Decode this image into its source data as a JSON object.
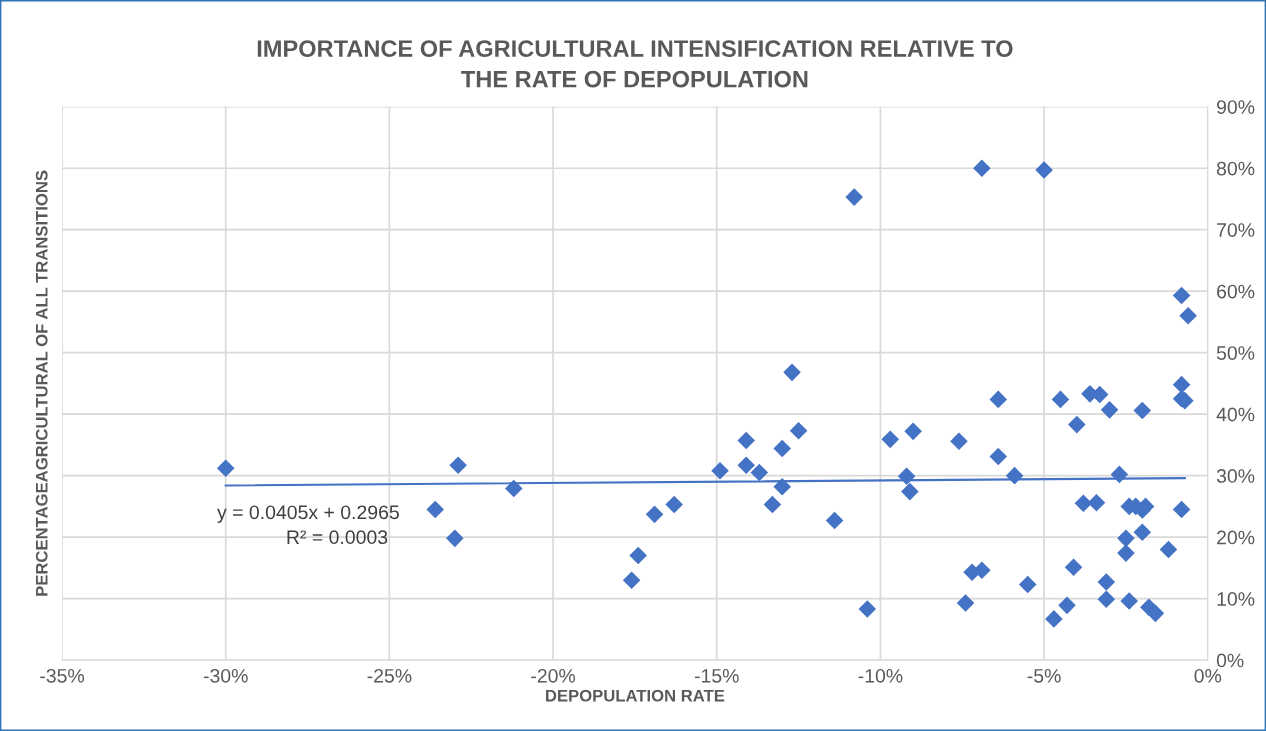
{
  "chart_data": {
    "type": "scatter",
    "title": "IMPORTANCE OF AGRICULTURAL INTENSIFICATION RELATIVE TO\nTHE RATE OF DEPOPULATION",
    "xlabel": "DEPOPULATION RATE",
    "ylabel": "PERCENTAGEAGRICULTURAL OF ALL TRANSITIONS",
    "x": [
      -0.3,
      -0.236,
      -0.229,
      -0.23,
      -0.212,
      -0.176,
      -0.174,
      -0.169,
      -0.163,
      -0.149,
      -0.141,
      -0.141,
      -0.137,
      -0.133,
      -0.13,
      -0.13,
      -0.127,
      -0.125,
      -0.114,
      -0.108,
      -0.104,
      -0.097,
      -0.092,
      -0.091,
      -0.09,
      -0.076,
      -0.074,
      -0.072,
      -0.069,
      -0.069,
      -0.064,
      -0.064,
      -0.059,
      -0.055,
      -0.05,
      -0.047,
      -0.045,
      -0.043,
      -0.041,
      -0.04,
      -0.038,
      -0.036,
      -0.034,
      -0.033,
      -0.031,
      -0.031,
      -0.03,
      -0.027,
      -0.025,
      -0.025,
      -0.024,
      -0.024,
      -0.022,
      -0.02,
      -0.02,
      -0.02,
      -0.019,
      -0.018,
      -0.016,
      -0.012,
      -0.008,
      -0.008,
      -0.008,
      -0.007,
      -0.006,
      -0.008
    ],
    "series": [
      {
        "color": "#4472c4",
        "marker": "diamond",
        "values": [
          0.312,
          0.245,
          0.317,
          0.198,
          0.279,
          0.13,
          0.17,
          0.237,
          0.253,
          0.308,
          0.357,
          0.317,
          0.305,
          0.253,
          0.344,
          0.282,
          0.468,
          0.373,
          0.227,
          0.753,
          0.083,
          0.359,
          0.299,
          0.274,
          0.372,
          0.356,
          0.093,
          0.143,
          0.146,
          0.8,
          0.331,
          0.424,
          0.3,
          0.123,
          0.797,
          0.067,
          0.424,
          0.089,
          0.151,
          0.383,
          0.255,
          0.433,
          0.256,
          0.432,
          0.099,
          0.127,
          0.407,
          0.302,
          0.198,
          0.174,
          0.25,
          0.096,
          0.25,
          0.406,
          0.208,
          0.244,
          0.25,
          0.086,
          0.076,
          0.18,
          0.593,
          0.448,
          0.425,
          0.422,
          0.56,
          0.245
        ]
      },
      {
        "type": "line",
        "color": "#4472c4",
        "marker": "none",
        "line_style": "solid",
        "x": [
          -0.3,
          -0.007
        ],
        "values": [
          0.284,
          0.296
        ]
      }
    ],
    "annotations": [
      "y = 0.0405x + 0.2965",
      "R² = 0.0003"
    ],
    "xlim": [
      -0.35,
      0
    ],
    "ylim": [
      0,
      0.9
    ],
    "xticks": [
      {
        "value": -0.35,
        "label": "-35%"
      },
      {
        "value": -0.3,
        "label": "-30%"
      },
      {
        "value": -0.25,
        "label": "-25%"
      },
      {
        "value": -0.2,
        "label": "-20%"
      },
      {
        "value": -0.15,
        "label": "-15%"
      },
      {
        "value": -0.1,
        "label": "-10%"
      },
      {
        "value": -0.05,
        "label": "-5%"
      },
      {
        "value": 0,
        "label": "0%"
      }
    ],
    "yticks": [
      {
        "value": 0,
        "label": "0%"
      },
      {
        "value": 0.1,
        "label": "10%"
      },
      {
        "value": 0.2,
        "label": "20%"
      },
      {
        "value": 0.3,
        "label": "30%"
      },
      {
        "value": 0.4,
        "label": "40%"
      },
      {
        "value": 0.5,
        "label": "50%"
      },
      {
        "value": 0.6,
        "label": "60%"
      },
      {
        "value": 0.7,
        "label": "70%"
      },
      {
        "value": 0.8,
        "label": "80%"
      },
      {
        "value": 0.9,
        "label": "90%"
      }
    ],
    "grid": true,
    "legend": false
  }
}
